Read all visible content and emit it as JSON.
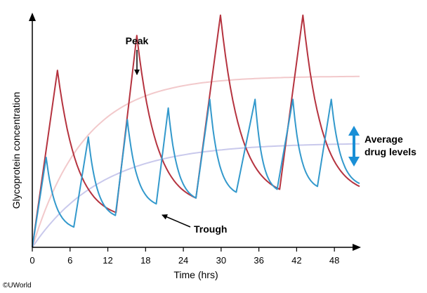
{
  "chart_data": {
    "type": "line",
    "xlabel": "Time (hrs)",
    "ylabel": "Glycoprotein concentration",
    "xlim": [
      0,
      52
    ],
    "ylim": [
      0,
      1
    ],
    "xticks": [
      0,
      6,
      12,
      18,
      24,
      30,
      36,
      42,
      48
    ],
    "xtick_labels": [
      "0",
      "6",
      "12",
      "18",
      "24",
      "30",
      "36",
      "42",
      "48"
    ],
    "grid": false,
    "series": [
      {
        "color": "#b5333f",
        "dosing_interval_hrs": 12.6,
        "x": [
          0,
          4,
          13.3,
          16.6,
          26,
          29.9,
          39.3,
          43,
          52
        ],
        "y": [
          0,
          0.61,
          0.12,
          0.73,
          0.17,
          0.8,
          0.2,
          0.8,
          0.21
        ]
      },
      {
        "color": "#3399cc",
        "dosing_interval_hrs": 6.3,
        "x": [
          0,
          2.2,
          6.6,
          8.9,
          13.2,
          15.1,
          19.7,
          21.6,
          26,
          28.2,
          32.4,
          35.4,
          38.9,
          41.4,
          45.3,
          47.5,
          52
        ],
        "y": [
          0,
          0.31,
          0.07,
          0.38,
          0.11,
          0.44,
          0.15,
          0.48,
          0.17,
          0.51,
          0.19,
          0.51,
          0.2,
          0.51,
          0.21,
          0.51,
          0.22
        ]
      }
    ],
    "reference_curves": [
      {
        "color": "#f2c9cb",
        "plateau": 0.59,
        "rate": 0.12
      },
      {
        "color": "#c9c9ec",
        "plateau": 0.36,
        "rate": 0.09
      }
    ],
    "annotations": {
      "peak": "Peak",
      "trough": "Trough",
      "average": [
        "Average",
        "drug levels"
      ]
    }
  },
  "copyright": "©UWorld"
}
